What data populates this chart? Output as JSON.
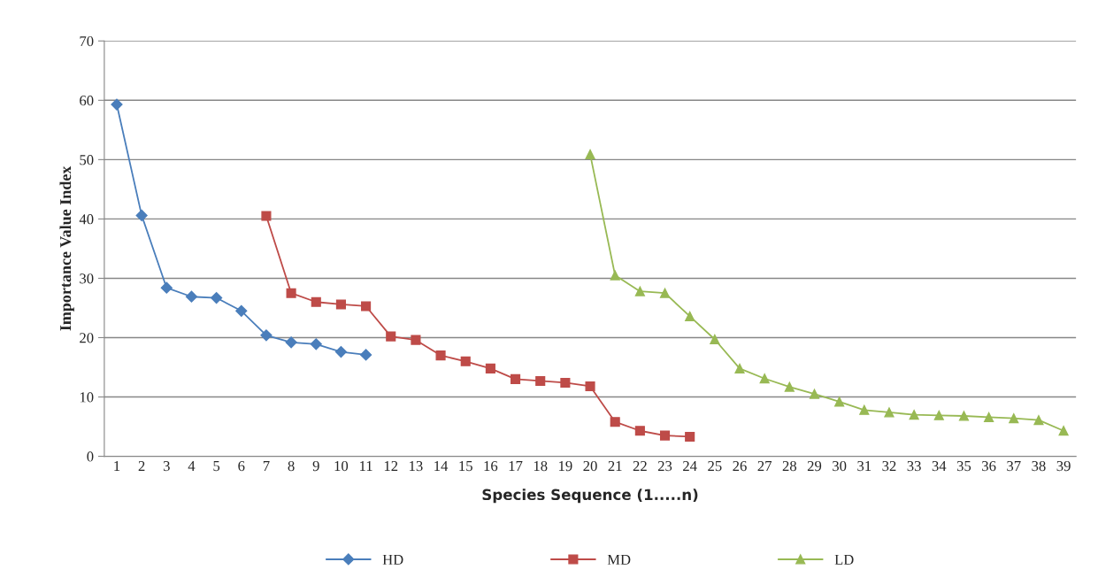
{
  "chart_data": {
    "type": "line",
    "xlabel": "Species Sequence (1.....n)",
    "ylabel": "Importance Value Index",
    "categories": [
      "1",
      "2",
      "3",
      "4",
      "5",
      "6",
      "7",
      "8",
      "9",
      "10",
      "11",
      "12",
      "13",
      "14",
      "15",
      "16",
      "17",
      "18",
      "19",
      "20",
      "21",
      "22",
      "23",
      "24",
      "25",
      "26",
      "27",
      "28",
      "29",
      "30",
      "31",
      "32",
      "33",
      "34",
      "35",
      "36",
      "37",
      "38",
      "39"
    ],
    "ylim": [
      0,
      70
    ],
    "yticks": [
      0,
      10,
      20,
      30,
      40,
      50,
      60,
      70
    ],
    "grid": "y",
    "legend": "bottom",
    "series": [
      {
        "name": "HD",
        "color": "#4a7ebb",
        "marker": "diamond",
        "values": [
          59.3,
          40.6,
          28.4,
          26.9,
          26.7,
          24.5,
          20.4,
          19.2,
          18.9,
          17.6,
          17.1,
          null,
          null,
          null,
          null,
          null,
          null,
          null,
          null,
          null,
          null,
          null,
          null,
          null,
          null,
          null,
          null,
          null,
          null,
          null,
          null,
          null,
          null,
          null,
          null,
          null,
          null,
          null,
          null
        ]
      },
      {
        "name": "MD",
        "color": "#be4b48",
        "marker": "square",
        "values": [
          null,
          null,
          null,
          null,
          null,
          null,
          40.5,
          27.5,
          26.0,
          25.6,
          25.3,
          20.2,
          19.6,
          17.0,
          16.0,
          14.8,
          13.0,
          12.7,
          12.4,
          11.8,
          5.8,
          4.3,
          3.5,
          3.3,
          null,
          null,
          null,
          null,
          null,
          null,
          null,
          null,
          null,
          null,
          null,
          null,
          null,
          null,
          null
        ]
      },
      {
        "name": "LD",
        "color": "#98b954",
        "marker": "triangle",
        "values": [
          null,
          null,
          null,
          null,
          null,
          null,
          null,
          null,
          null,
          null,
          null,
          null,
          null,
          null,
          null,
          null,
          null,
          null,
          null,
          50.9,
          30.5,
          27.8,
          27.5,
          23.6,
          19.7,
          14.8,
          13.1,
          11.7,
          10.5,
          9.2,
          7.8,
          7.4,
          7.0,
          6.9,
          6.8,
          6.6,
          6.4,
          6.1,
          4.3
        ]
      }
    ]
  }
}
